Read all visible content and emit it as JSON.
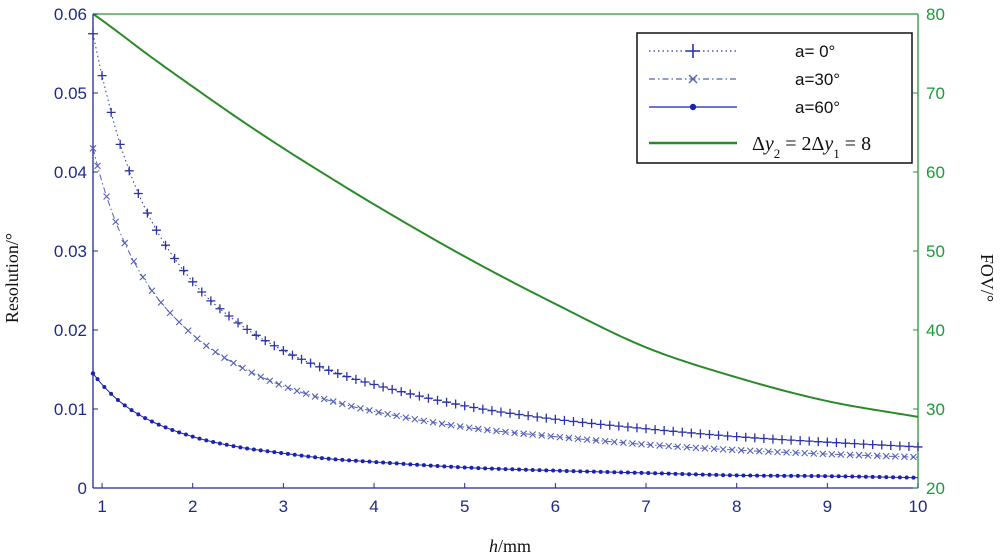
{
  "chart_data": {
    "type": "line",
    "xlabel": {
      "italic": "h",
      "rest": "/mm"
    },
    "ylabel_left": "Resolution/°",
    "ylabel_right": "FOV/°",
    "xlim": [
      0.9,
      10
    ],
    "ylim_left": [
      0,
      0.06
    ],
    "ylim_right": [
      20,
      80
    ],
    "x_ticks": [
      "1",
      "2",
      "3",
      "4",
      "5",
      "6",
      "7",
      "8",
      "9",
      "10"
    ],
    "y_ticks_left": [
      "0",
      "0.01",
      "0.02",
      "0.03",
      "0.04",
      "0.05",
      "0.06"
    ],
    "y_ticks_right": [
      "20",
      "30",
      "40",
      "50",
      "60",
      "70",
      "80"
    ],
    "grid": true,
    "legend_position": "top-right",
    "x": [
      0.9,
      1.0,
      1.2,
      1.5,
      2.0,
      2.5,
      3.0,
      3.5,
      4.0,
      5.0,
      6.0,
      7.0,
      8.0,
      9.0,
      10.0
    ],
    "series": [
      {
        "name": "a=  0°",
        "axis": "left",
        "marker": "plus",
        "color": "#2b33a8",
        "values": [
          0.0575,
          0.0522,
          0.0435,
          0.0348,
          0.0261,
          0.0209,
          0.0174,
          0.0149,
          0.0131,
          0.0104,
          0.0087,
          0.0075,
          0.0065,
          0.0058,
          0.0052
        ]
      },
      {
        "name": "a=30°",
        "axis": "left",
        "marker": "x",
        "color": "#5560b8",
        "values": [
          0.043,
          0.0387,
          0.0323,
          0.0258,
          0.0194,
          0.0155,
          0.0129,
          0.0111,
          0.0097,
          0.0077,
          0.0065,
          0.0055,
          0.0048,
          0.0043,
          0.0039
        ]
      },
      {
        "name": "a=60°",
        "axis": "left",
        "marker": "dot",
        "color": "#1a22b0",
        "values": [
          0.0145,
          0.0131,
          0.0109,
          0.0087,
          0.0065,
          0.0052,
          0.0044,
          0.0037,
          0.0033,
          0.0026,
          0.0022,
          0.0019,
          0.0016,
          0.0015,
          0.0013
        ]
      },
      {
        "name": "Δy2 = 2Δy1 = 8",
        "axis": "right",
        "marker": "none",
        "color": "#2a8a2a",
        "values": [
          80.0,
          79.2,
          77.5,
          74.9,
          70.8,
          66.8,
          63.0,
          59.4,
          55.9,
          49.3,
          43.3,
          37.8,
          34.0,
          31.0,
          29.0
        ]
      }
    ]
  }
}
